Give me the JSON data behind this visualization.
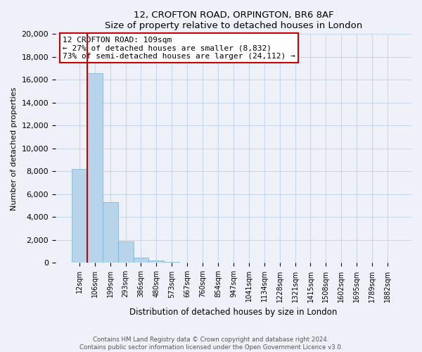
{
  "title_line1": "12, CROFTON ROAD, ORPINGTON, BR6 8AF",
  "title_line2": "Size of property relative to detached houses in London",
  "xlabel": "Distribution of detached houses by size in London",
  "ylabel": "Number of detached properties",
  "bar_labels": [
    "12sqm",
    "106sqm",
    "199sqm",
    "293sqm",
    "386sqm",
    "480sqm",
    "573sqm",
    "667sqm",
    "760sqm",
    "854sqm",
    "947sqm",
    "1041sqm",
    "1134sqm",
    "1228sqm",
    "1321sqm",
    "1415sqm",
    "1508sqm",
    "1602sqm",
    "1695sqm",
    "1789sqm",
    "1882sqm"
  ],
  "bar_heights": [
    8200,
    16600,
    5300,
    1850,
    450,
    200,
    100,
    50,
    50,
    0,
    0,
    0,
    0,
    0,
    0,
    0,
    0,
    0,
    0,
    0,
    0
  ],
  "bar_color": "#b8d4ea",
  "bar_edge_color": "#7aaed4",
  "annotation_text_line1": "12 CROFTON ROAD: 109sqm",
  "annotation_text_line2": "← 27% of detached houses are smaller (8,832)",
  "annotation_text_line3": "73% of semi-detached houses are larger (24,112) →",
  "vline_color": "#cc0000",
  "vline_x": 1.0,
  "ylim": [
    0,
    20000
  ],
  "yticks": [
    0,
    2000,
    4000,
    6000,
    8000,
    10000,
    12000,
    14000,
    16000,
    18000,
    20000
  ],
  "grid_color": "#c8d8ec",
  "footer_line1": "Contains HM Land Registry data © Crown copyright and database right 2024.",
  "footer_line2": "Contains public sector information licensed under the Open Government Licence v3.0.",
  "bg_color": "#eef2f8",
  "ann_box_color": "#ffffff",
  "ann_border_color": "#cc0000"
}
